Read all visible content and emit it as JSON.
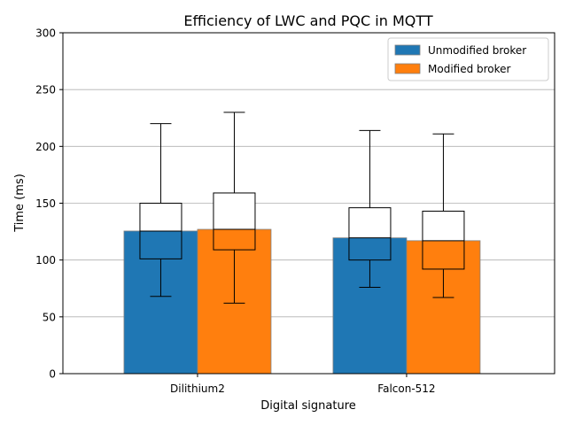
{
  "chart_data": {
    "type": "bar",
    "title": "Efficiency of LWC and PQC in MQTT",
    "xlabel": "Digital signature",
    "ylabel": "Time (ms)",
    "ylim": [
      0,
      300
    ],
    "yticks": [
      0,
      50,
      100,
      150,
      200,
      250,
      300
    ],
    "grid": "horizontal",
    "legend_position": "top-right",
    "categories": [
      "Dilithium2",
      "Falcon-512"
    ],
    "series": [
      {
        "name": "Unmodified broker",
        "color": "#1f77b4",
        "values": [
          125.5,
          119.5
        ],
        "boxes": [
          {
            "whislo": 68,
            "q1": 101,
            "med": 125.5,
            "q3": 150,
            "whishi": 220
          },
          {
            "whislo": 76,
            "q1": 100,
            "med": 119.5,
            "q3": 146,
            "whishi": 214
          }
        ]
      },
      {
        "name": "Modified broker",
        "color": "#ff7f0e",
        "values": [
          127,
          117
        ],
        "boxes": [
          {
            "whislo": 62,
            "q1": 109,
            "med": 127,
            "q3": 159,
            "whishi": 230
          },
          {
            "whislo": 67,
            "q1": 92,
            "med": 117,
            "q3": 143,
            "whishi": 211
          }
        ]
      }
    ]
  }
}
